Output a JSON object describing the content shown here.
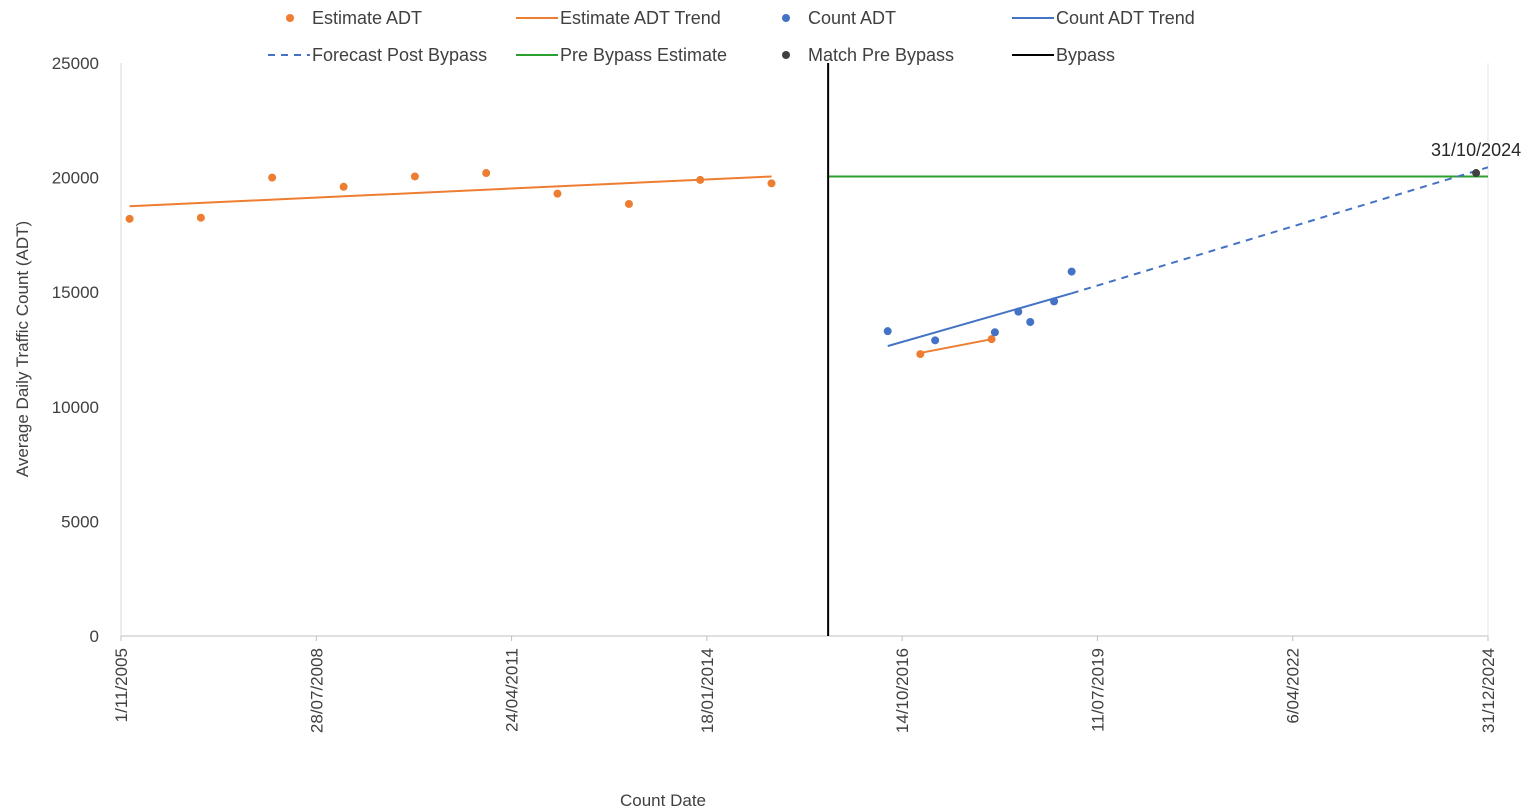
{
  "chart_data": {
    "type": "scatter",
    "xlabel": "Count Date",
    "ylabel": "Average Daily Traffic Count (ADT)",
    "ylim": [
      0,
      25000
    ],
    "xlim": [
      "2005-11-01",
      "2024-12-31"
    ],
    "y_ticks": [
      0,
      5000,
      10000,
      15000,
      20000,
      25000
    ],
    "x_ticks": [
      {
        "date": "2005-11-01",
        "label": "1/11/2005"
      },
      {
        "date": "2008-07-28",
        "label": "28/07/2008"
      },
      {
        "date": "2011-04-24",
        "label": "24/04/2011"
      },
      {
        "date": "2014-01-18",
        "label": "18/01/2014"
      },
      {
        "date": "2016-10-14",
        "label": "14/10/2016"
      },
      {
        "date": "2019-07-11",
        "label": "11/07/2019"
      },
      {
        "date": "2022-04-06",
        "label": "6/04/2022"
      },
      {
        "date": "2024-12-31",
        "label": "31/12/2024"
      }
    ],
    "grid": false,
    "legend_position": "top",
    "legend": [
      {
        "name": "Estimate ADT",
        "kind": "marker",
        "color": "#ED7D31"
      },
      {
        "name": "Estimate ADT Trend",
        "kind": "line",
        "color": "#ED7D31"
      },
      {
        "name": "Count ADT",
        "kind": "marker",
        "color": "#4472C4"
      },
      {
        "name": "Count ADT Trend",
        "kind": "line",
        "color": "#4472C4"
      },
      {
        "name": "Forecast Post Bypass",
        "kind": "dashed",
        "color": "#4472C4"
      },
      {
        "name": "Pre Bypass Estimate",
        "kind": "line",
        "color": "#2CA02C"
      },
      {
        "name": "Match Pre Bypass",
        "kind": "marker",
        "color": "#404040"
      },
      {
        "name": "Bypass",
        "kind": "line",
        "color": "#000000"
      }
    ],
    "series": [
      {
        "name": "Estimate ADT",
        "type": "scatter",
        "color": "#ED7D31",
        "points": [
          {
            "x": "2005-12-15",
            "y": 18200
          },
          {
            "x": "2006-12-15",
            "y": 18250
          },
          {
            "x": "2007-12-15",
            "y": 20000
          },
          {
            "x": "2008-12-15",
            "y": 19600
          },
          {
            "x": "2009-12-15",
            "y": 20050
          },
          {
            "x": "2010-12-15",
            "y": 20200
          },
          {
            "x": "2011-12-15",
            "y": 19300
          },
          {
            "x": "2012-12-15",
            "y": 18850
          },
          {
            "x": "2013-12-15",
            "y": 19900
          },
          {
            "x": "2014-12-15",
            "y": 19750
          },
          {
            "x": "2017-01-15",
            "y": 12300
          },
          {
            "x": "2018-01-15",
            "y": 12950
          }
        ]
      },
      {
        "name": "Estimate ADT Trend",
        "type": "line",
        "color": "#ED7D31",
        "segments": [
          [
            {
              "x": "2005-12-15",
              "y": 18750
            },
            {
              "x": "2014-12-15",
              "y": 20050
            }
          ],
          [
            {
              "x": "2017-01-15",
              "y": 12350
            },
            {
              "x": "2018-01-15",
              "y": 12950
            }
          ]
        ]
      },
      {
        "name": "Count ADT",
        "type": "scatter",
        "color": "#4472C4",
        "points": [
          {
            "x": "2016-08-01",
            "y": 13300
          },
          {
            "x": "2017-04-01",
            "y": 12900
          },
          {
            "x": "2018-02-01",
            "y": 13250
          },
          {
            "x": "2018-06-01",
            "y": 14150
          },
          {
            "x": "2018-08-01",
            "y": 13700
          },
          {
            "x": "2018-12-01",
            "y": 14600
          },
          {
            "x": "2019-03-01",
            "y": 15900
          }
        ]
      },
      {
        "name": "Count ADT Trend",
        "type": "line",
        "color": "#4472C4",
        "segments": [
          [
            {
              "x": "2016-08-01",
              "y": 12650
            },
            {
              "x": "2019-03-01",
              "y": 14950
            }
          ]
        ]
      },
      {
        "name": "Forecast Post Bypass",
        "type": "line",
        "dashed": true,
        "color": "#4472C4",
        "segments": [
          [
            {
              "x": "2019-03-01",
              "y": 14950
            },
            {
              "x": "2024-12-31",
              "y": 20450
            }
          ]
        ]
      },
      {
        "name": "Pre Bypass Estimate",
        "type": "line",
        "color": "#2CA02C",
        "segments": [
          [
            {
              "x": "2015-10-01",
              "y": 20050
            },
            {
              "x": "2024-12-31",
              "y": 20050
            }
          ]
        ]
      },
      {
        "name": "Match Pre Bypass",
        "type": "scatter",
        "color": "#404040",
        "points": [
          {
            "x": "2024-10-31",
            "y": 20200,
            "label": "31/10/2024"
          }
        ]
      },
      {
        "name": "Bypass",
        "type": "vline",
        "color": "#000000",
        "x": "2015-10-01"
      }
    ]
  }
}
